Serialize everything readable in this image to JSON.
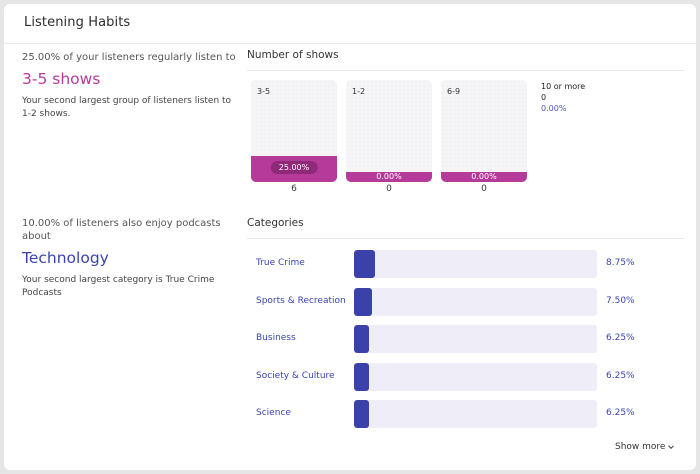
{
  "card": {
    "title": "Listening Habits"
  },
  "shows_summary": {
    "lead": "25.00% of your listeners regularly listen to",
    "highlight": "3-5 shows",
    "sub": "Your second largest group of listeners listen to 1-2 shows."
  },
  "categories_summary": {
    "lead": "10.00% of listeners also enjoy podcasts about",
    "highlight": "Technology",
    "sub": "Your second largest category is True Crime Podcasts"
  },
  "number_of_shows": {
    "title": "Number of shows",
    "items": [
      {
        "label": "3-5",
        "percent_label": "25.00%",
        "percent": 25.0,
        "count": "6"
      },
      {
        "label": "1-2",
        "percent_label": "0.00%",
        "percent": 0.0,
        "count": "0"
      },
      {
        "label": "6-9",
        "percent_label": "0.00%",
        "percent": 0.0,
        "count": "0"
      }
    ],
    "extra": {
      "label": "10 or more",
      "count": "0",
      "percent_label": "0.00%"
    }
  },
  "categories": {
    "title": "Categories",
    "items": [
      {
        "label": "True Crime",
        "percent_label": "8.75%",
        "percent": 8.75
      },
      {
        "label": "Sports & Recreation",
        "percent_label": "7.50%",
        "percent": 7.5
      },
      {
        "label": "Business",
        "percent_label": "6.25%",
        "percent": 6.25
      },
      {
        "label": "Society & Culture",
        "percent_label": "6.25%",
        "percent": 6.25
      },
      {
        "label": "Science",
        "percent_label": "6.25%",
        "percent": 6.25
      }
    ],
    "show_more_label": "Show more"
  },
  "colors": {
    "shows_accent": "#b63a9a",
    "category_accent": "#3a41a8"
  },
  "icons": {
    "show_more": "chevron-down-icon"
  }
}
